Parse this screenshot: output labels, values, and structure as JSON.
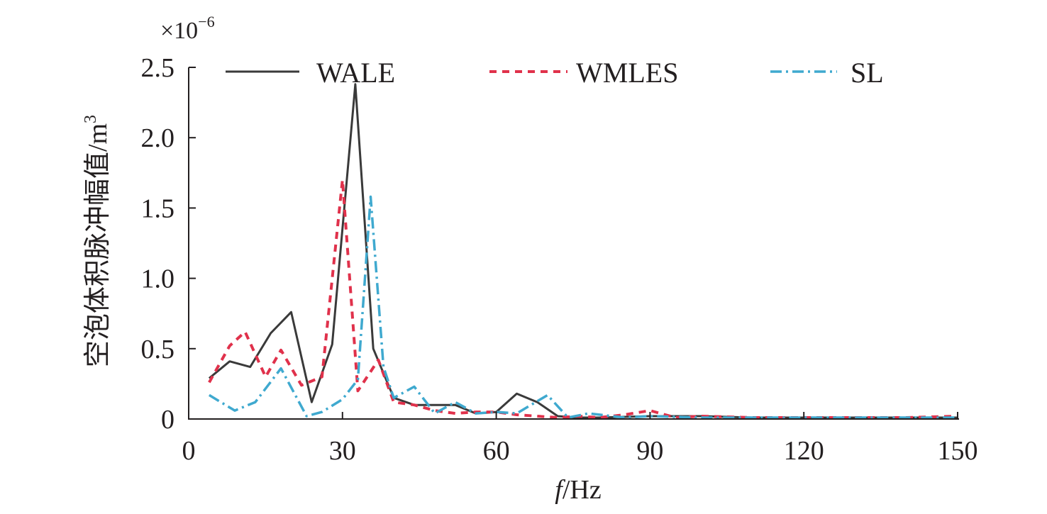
{
  "colors": {
    "axis": "#231f20",
    "WALE": "#3a3a3a",
    "WMLES": "#e0314b",
    "SL": "#3fa9cf"
  },
  "chart_data": {
    "type": "line",
    "xlabel_italic": "f",
    "xlabel_rest": "/Hz",
    "ylabel_main": "空泡体积脉冲幅值/m",
    "ylabel_sup": "3",
    "y_multiplier_base": "×10",
    "y_multiplier_exp": "−6",
    "xlim": [
      0,
      150
    ],
    "ylim": [
      0,
      2.5
    ],
    "xticks": [
      0,
      30,
      60,
      90,
      120,
      150
    ],
    "xtick_labels": [
      "0",
      "30",
      "60",
      "90",
      "120",
      "150"
    ],
    "yticks": [
      0,
      0.5,
      1.0,
      1.5,
      2.0,
      2.5
    ],
    "ytick_labels": [
      "0",
      "0.5",
      "1.0",
      "1.5",
      "2.0",
      "2.5"
    ],
    "grid": false,
    "legend_position": "top",
    "series": [
      {
        "name": "WALE",
        "style": "solid",
        "x": [
          4,
          8,
          12,
          16,
          20,
          24,
          28,
          32.5,
          36,
          40,
          44,
          48,
          52,
          56,
          60,
          64,
          68,
          72,
          76,
          80,
          90,
          100,
          110,
          120,
          130,
          140,
          150
        ],
        "y": [
          0.29,
          0.41,
          0.37,
          0.61,
          0.76,
          0.12,
          0.53,
          2.38,
          0.5,
          0.15,
          0.1,
          0.1,
          0.1,
          0.04,
          0.05,
          0.18,
          0.12,
          0.02,
          0.01,
          0.01,
          0.02,
          0.02,
          0.01,
          0.01,
          0.01,
          0.01,
          0.01
        ]
      },
      {
        "name": "WMLES",
        "style": "dashed",
        "x": [
          4,
          8,
          11,
          15,
          18,
          22,
          26,
          30,
          33,
          37,
          40,
          44,
          48,
          52,
          56,
          60,
          64,
          68,
          72,
          76,
          80,
          85,
          90,
          95,
          100,
          110,
          120,
          130,
          140,
          150
        ],
        "y": [
          0.26,
          0.52,
          0.62,
          0.3,
          0.49,
          0.24,
          0.3,
          1.7,
          0.2,
          0.42,
          0.12,
          0.1,
          0.06,
          0.04,
          0.05,
          0.05,
          0.03,
          0.02,
          0.01,
          0.02,
          0.01,
          0.03,
          0.06,
          0.01,
          0.02,
          0.01,
          0.01,
          0.01,
          0.01,
          0.02
        ]
      },
      {
        "name": "SL",
        "style": "dash-dot",
        "x": [
          4,
          9,
          13,
          18,
          23,
          26,
          30,
          33,
          35.5,
          38,
          40,
          44,
          48,
          52,
          56,
          60,
          64,
          70,
          74,
          78,
          85,
          90,
          100,
          110,
          120,
          130,
          140,
          150
        ],
        "y": [
          0.17,
          0.06,
          0.12,
          0.36,
          0.02,
          0.05,
          0.14,
          0.28,
          1.58,
          0.37,
          0.15,
          0.23,
          0.04,
          0.12,
          0.04,
          0.05,
          0.04,
          0.17,
          0.01,
          0.04,
          0.01,
          0.02,
          0.01,
          0.01,
          0.01,
          0.01,
          0.01,
          0.01
        ]
      }
    ]
  }
}
